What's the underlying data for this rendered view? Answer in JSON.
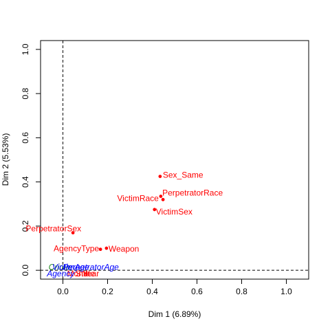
{
  "chart_data": {
    "type": "scatter",
    "title": "",
    "xlabel": "Dim 1 (6.89%)",
    "ylabel": "Dim 2 (5.53%)",
    "xlim": [
      -0.1,
      1.1
    ],
    "ylim": [
      -0.04,
      1.04
    ],
    "xticks": [
      "0.0",
      "0.2",
      "0.4",
      "0.6",
      "0.8",
      "1.0"
    ],
    "xtick_values": [
      0,
      0.2,
      0.4,
      0.6,
      0.8,
      1.0
    ],
    "yticks": [
      "0.0",
      "0.2",
      "0.4",
      "0.6",
      "0.8",
      "1.0"
    ],
    "ytick_values": [
      0,
      0.2,
      0.4,
      0.6,
      0.8,
      1.0
    ],
    "reference_lines": {
      "x": 0,
      "y": 0,
      "style": "dashed"
    },
    "colors": {
      "active": "#ff0000",
      "supplementary_blue": "#0000ff",
      "supplementary_green": "#228b22"
    },
    "points": [
      {
        "label": "Sex_Same",
        "x": 0.435,
        "y": 0.425,
        "color": "#ff0000",
        "marker": true
      },
      {
        "label": "PerpetratorRace",
        "x": 0.448,
        "y": 0.32,
        "color": "#ff0000",
        "marker": true
      },
      {
        "label": "VictimRace",
        "x": 0.438,
        "y": 0.335,
        "color": "#ff0000",
        "marker": true
      },
      {
        "label": "VictimSex",
        "x": 0.41,
        "y": 0.275,
        "color": "#ff0000",
        "marker": true
      },
      {
        "label": "PerpetratorSex",
        "x": 0.045,
        "y": 0.17,
        "color": "#ff0000",
        "marker": true
      },
      {
        "label": "AgencyType",
        "x": 0.168,
        "y": 0.095,
        "color": "#ff0000",
        "marker": true
      },
      {
        "label": "Weapon",
        "x": 0.195,
        "y": 0.1,
        "color": "#ff0000",
        "marker": true
      },
      {
        "label": "Month",
        "x": 0.07,
        "y": -0.015,
        "color": "#ff0000",
        "marker": false
      },
      {
        "label": "State",
        "x": 0.1,
        "y": -0.015,
        "color": "#ff0000",
        "marker": false
      },
      {
        "label": "Year",
        "x": 0.125,
        "y": -0.015,
        "color": "#ff0000",
        "marker": false
      },
      {
        "label": "Crime",
        "x": -0.015,
        "y": 0.015,
        "color": "#228b22",
        "marker": false
      },
      {
        "label": "VictimAge",
        "x": 0.035,
        "y": 0.015,
        "color": "#0000ff",
        "marker": false
      },
      {
        "label": "PerpetratorAge",
        "x": 0.125,
        "y": 0.015,
        "color": "#0000ff",
        "marker": false
      },
      {
        "label": "Agency",
        "x": -0.01,
        "y": -0.015,
        "color": "#0000ff",
        "marker": false
      }
    ]
  }
}
